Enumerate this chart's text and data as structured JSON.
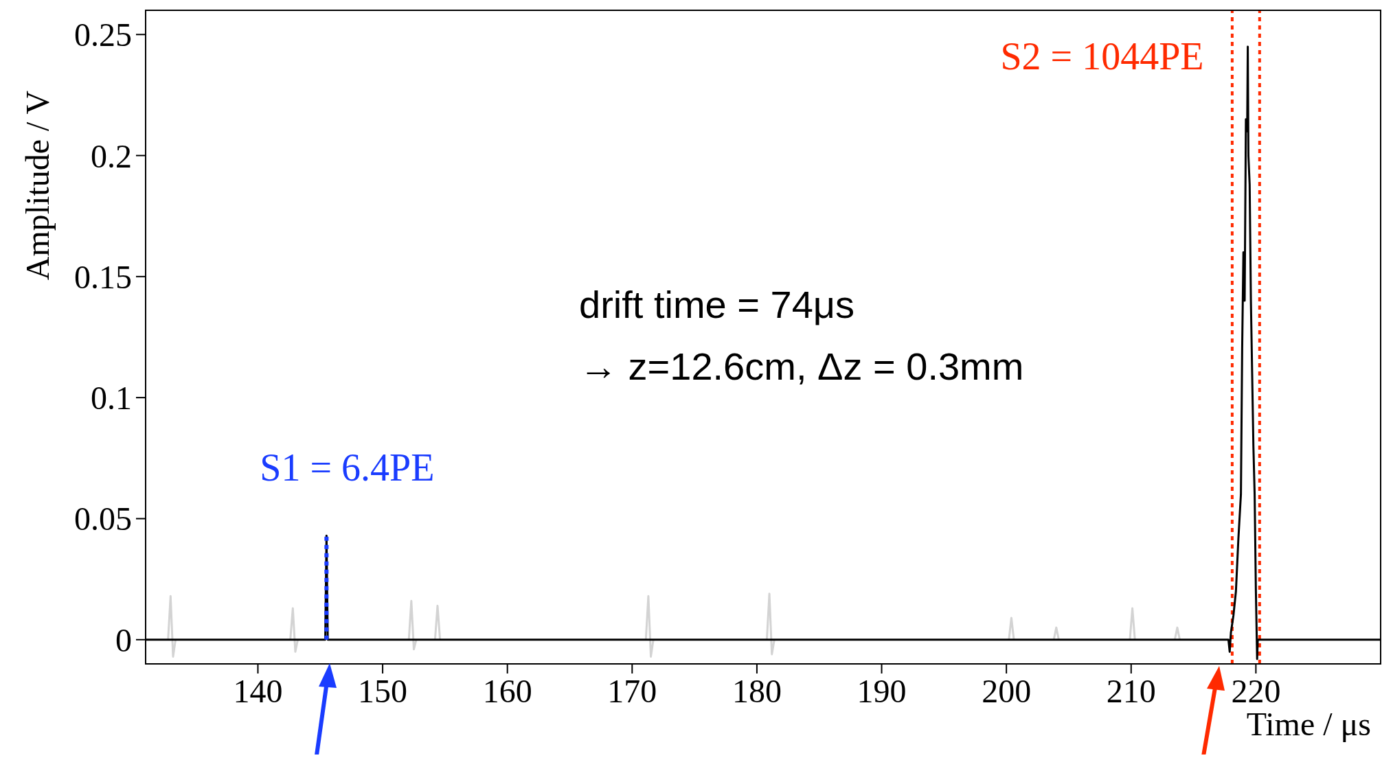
{
  "chart_data": {
    "type": "line",
    "xlabel": "Time / μs",
    "ylabel": "Amplitude / V",
    "xlim": [
      131,
      230
    ],
    "xticks": [
      140,
      150,
      160,
      170,
      180,
      190,
      200,
      210,
      220
    ],
    "ylim": [
      -0.01,
      0.26
    ],
    "yticks": [
      0,
      0.05,
      0.1,
      0.15,
      0.2,
      0.25
    ],
    "marker": "none",
    "line_style": "solid",
    "series": [
      {
        "color": "#d3d3d3",
        "x": [
          132.8,
          133,
          133.2,
          133.4,
          null,
          142.6,
          142.8,
          143,
          143.2,
          null,
          152.1,
          152.3,
          152.5,
          152.7,
          null,
          154.2,
          154.4,
          154.6,
          null,
          171.1,
          171.3,
          171.5,
          171.7,
          null,
          180.8,
          181,
          181.2,
          181.4,
          null,
          200.2,
          200.4,
          200.6,
          null,
          203.8,
          204,
          204.2,
          null,
          209.9,
          210.1,
          210.3,
          null,
          213.5,
          213.7,
          213.9
        ],
        "values": [
          0,
          0.018,
          -0.007,
          0,
          null,
          0,
          0.013,
          -0.005,
          0,
          null,
          0,
          0.016,
          -0.004,
          0,
          null,
          0,
          0.014,
          0,
          null,
          0,
          0.018,
          -0.007,
          0,
          null,
          0,
          0.019,
          -0.006,
          0,
          null,
          0,
          0.009,
          0,
          null,
          0,
          0.005,
          0,
          null,
          0,
          0.013,
          0,
          null,
          0,
          0.005,
          0
        ]
      },
      {
        "color": "#000000",
        "x": [
          131,
          145.4,
          145.5,
          145.6,
          217.8,
          217.9,
          218,
          218.2,
          218.4,
          218.6,
          218.8,
          218.9,
          219,
          219.1,
          219.2,
          219.3,
          219.35,
          219.4,
          219.5,
          219.6,
          219.7,
          219.8,
          219.9,
          220,
          220.1,
          220.15,
          230
        ],
        "values": [
          0,
          0,
          0.043,
          0,
          0,
          -0.005,
          0.003,
          0.01,
          0.02,
          0.042,
          0.06,
          0.12,
          0.16,
          0.14,
          0.215,
          0.21,
          0.245,
          0.2,
          0.188,
          0.14,
          0.11,
          0.08,
          0.06,
          0.02,
          -0.008,
          0,
          0
        ]
      },
      {
        "color": "#1a3cff",
        "line_style": "dotted",
        "x": [
          145.5,
          145.5
        ],
        "values": [
          0,
          0.043
        ]
      }
    ],
    "ref_lines": [
      {
        "axis": "x",
        "value": 218.1,
        "color": "#ff2a00",
        "line_style": "dotted"
      },
      {
        "axis": "x",
        "value": 220.3,
        "color": "#ff2a00",
        "line_style": "dotted"
      }
    ],
    "annotations": [
      {
        "text": "S1 = 6.4PE",
        "x": 145.5,
        "y": 0.043
      },
      {
        "text": "S2 = 1044PE",
        "x": 219.4,
        "y": 0.245
      },
      "drift time = 74μs",
      "→ z=12.6cm, Δz = 0.3mm"
    ]
  }
}
